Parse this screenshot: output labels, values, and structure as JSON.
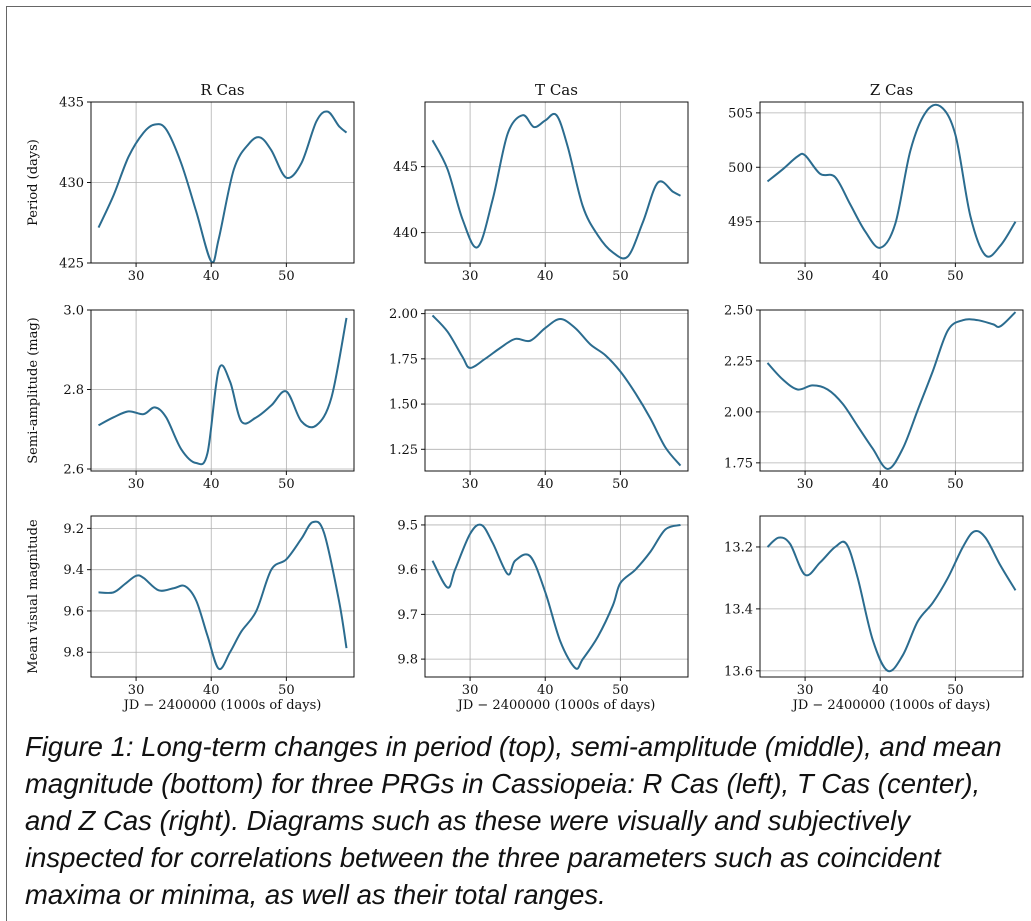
{
  "figure": {
    "caption": "Figure 1: Long-term changes in period (top), semi-amplitude (middle), and mean magnitude (bottom) for three PRGs in Cassiopeia: R Cas (left), T Cas (center), and Z Cas (right).  Diagrams such as these were visually and subjectively inspected for correlations between the three parameters such as coincident maxima or minima, as well as their total ranges."
  },
  "style": {
    "line_color": "#2b6c8f",
    "grid_color": "#b0b0b0"
  },
  "chart_data": [
    {
      "type": "line",
      "title": "R Cas",
      "ylabel": "Period (days)",
      "xlabel": "",
      "grid": true,
      "xlim": [
        24,
        59
      ],
      "ylim": [
        425,
        435
      ],
      "yticks": [
        425,
        430,
        435
      ],
      "xticks": [
        30,
        40,
        50
      ],
      "yinvert": false,
      "x": [
        25,
        27,
        29,
        31,
        32.5,
        34,
        36,
        38,
        40,
        41,
        43,
        45,
        46.5,
        48,
        50,
        52,
        54,
        55.5,
        57,
        58
      ],
      "y": [
        427.2,
        429.2,
        431.6,
        433.1,
        433.6,
        433.3,
        431.2,
        428.2,
        425.1,
        426.5,
        430.8,
        432.4,
        432.8,
        432,
        430.3,
        431.2,
        433.8,
        434.4,
        433.5,
        433.1
      ]
    },
    {
      "type": "line",
      "title": "T Cas",
      "ylabel": "",
      "xlabel": "",
      "grid": true,
      "xlim": [
        24,
        59
      ],
      "ylim": [
        437.7,
        449.9
      ],
      "yticks": [
        440,
        445
      ],
      "xticks": [
        30,
        40,
        50
      ],
      "yinvert": false,
      "x": [
        25,
        27,
        29,
        31,
        33,
        35,
        37,
        38.5,
        40,
        41.5,
        43,
        45,
        47,
        49,
        51,
        53,
        55,
        57,
        58
      ],
      "y": [
        447,
        444.8,
        441,
        438.9,
        442.5,
        447.5,
        448.9,
        448,
        448.5,
        448.9,
        446.5,
        442,
        439.8,
        438.5,
        438.2,
        440.8,
        443.8,
        443.1,
        442.8
      ]
    },
    {
      "type": "line",
      "title": "Z Cas",
      "ylabel": "",
      "xlabel": "",
      "grid": true,
      "xlim": [
        24,
        59
      ],
      "ylim": [
        491.2,
        506
      ],
      "yticks": [
        495,
        500,
        505
      ],
      "xticks": [
        30,
        40,
        50
      ],
      "yinvert": false,
      "x": [
        25,
        27,
        29,
        30,
        32,
        34,
        36,
        38,
        40,
        42,
        44,
        46,
        48,
        50,
        52,
        54,
        56,
        58
      ],
      "y": [
        498.7,
        499.8,
        501,
        501.1,
        499.4,
        499.1,
        496.6,
        494.1,
        492.6,
        494.8,
        501.5,
        505,
        505.6,
        503,
        495.5,
        491.9,
        492.8,
        495
      ]
    },
    {
      "type": "line",
      "title": "",
      "ylabel": "Semi-amplitude (mag)",
      "xlabel": "",
      "grid": true,
      "xlim": [
        24,
        59
      ],
      "ylim": [
        2.595,
        3.0
      ],
      "yticks": [
        2.6,
        2.8,
        3.0
      ],
      "xticks": [
        30,
        40,
        50
      ],
      "yinvert": false,
      "x": [
        25,
        27,
        29,
        31,
        32.5,
        34,
        36,
        38,
        39.5,
        41,
        42.5,
        44,
        46,
        48,
        50,
        52,
        54,
        56,
        58
      ],
      "y": [
        2.71,
        2.73,
        2.745,
        2.738,
        2.755,
        2.73,
        2.65,
        2.615,
        2.64,
        2.85,
        2.82,
        2.72,
        2.73,
        2.76,
        2.795,
        2.72,
        2.71,
        2.78,
        2.98
      ]
    },
    {
      "type": "line",
      "title": "",
      "ylabel": "",
      "xlabel": "",
      "grid": true,
      "xlim": [
        24,
        59
      ],
      "ylim": [
        1.13,
        2.02
      ],
      "yticks": [
        1.25,
        1.5,
        1.75,
        2.0
      ],
      "xticks": [
        30,
        40,
        50
      ],
      "yinvert": false,
      "x": [
        25,
        27,
        29,
        30,
        32,
        34,
        36,
        38,
        40,
        42,
        44,
        46,
        48,
        50,
        52,
        54,
        56,
        58
      ],
      "y": [
        1.99,
        1.9,
        1.76,
        1.7,
        1.75,
        1.81,
        1.86,
        1.85,
        1.92,
        1.97,
        1.92,
        1.83,
        1.77,
        1.68,
        1.56,
        1.42,
        1.26,
        1.16
      ]
    },
    {
      "type": "line",
      "title": "",
      "ylabel": "",
      "xlabel": "",
      "grid": true,
      "xlim": [
        24,
        59
      ],
      "ylim": [
        1.71,
        2.5
      ],
      "yticks": [
        1.75,
        2.0,
        2.25,
        2.5
      ],
      "xticks": [
        30,
        40,
        50
      ],
      "yinvert": false,
      "x": [
        25,
        27,
        29,
        31,
        33,
        35,
        37,
        39,
        41,
        43,
        45,
        47,
        49,
        51,
        53,
        55,
        56,
        58
      ],
      "y": [
        2.24,
        2.16,
        2.11,
        2.13,
        2.11,
        2.04,
        1.93,
        1.82,
        1.72,
        1.82,
        2.01,
        2.2,
        2.4,
        2.45,
        2.45,
        2.43,
        2.42,
        2.49
      ]
    },
    {
      "type": "line",
      "title": "",
      "ylabel": "Mean visual magnitude",
      "xlabel": "JD − 2400000 (1000s of days)",
      "grid": true,
      "xlim": [
        24,
        59
      ],
      "ylim": [
        9.92,
        9.14
      ],
      "yticks": [
        9.2,
        9.4,
        9.6,
        9.8
      ],
      "xticks": [
        30,
        40,
        50
      ],
      "yinvert": true,
      "x": [
        25,
        27,
        28.5,
        30,
        31,
        33,
        35,
        36.5,
        38,
        39.5,
        41,
        42.5,
        44,
        46,
        48,
        50,
        52,
        53.5,
        55,
        57,
        58
      ],
      "y": [
        9.51,
        9.51,
        9.47,
        9.43,
        9.44,
        9.5,
        9.49,
        9.48,
        9.55,
        9.72,
        9.88,
        9.8,
        9.7,
        9.6,
        9.4,
        9.35,
        9.25,
        9.17,
        9.22,
        9.55,
        9.78
      ]
    },
    {
      "type": "line",
      "title": "",
      "ylabel": "",
      "xlabel": "JD − 2400000 (1000s of days)",
      "grid": true,
      "xlim": [
        24,
        59
      ],
      "ylim": [
        9.84,
        9.48
      ],
      "yticks": [
        9.5,
        9.6,
        9.7,
        9.8
      ],
      "xticks": [
        30,
        40,
        50
      ],
      "yinvert": true,
      "x": [
        25,
        27,
        28,
        30,
        31.5,
        33,
        35,
        36,
        38,
        40,
        42,
        44,
        45,
        47,
        49,
        50,
        52,
        54,
        56,
        58
      ],
      "y": [
        9.58,
        9.64,
        9.6,
        9.52,
        9.5,
        9.54,
        9.61,
        9.58,
        9.57,
        9.65,
        9.76,
        9.82,
        9.8,
        9.75,
        9.68,
        9.63,
        9.6,
        9.56,
        9.51,
        9.5
      ]
    },
    {
      "type": "line",
      "title": "",
      "ylabel": "",
      "xlabel": "JD − 2400000 (1000s of days)",
      "grid": true,
      "xlim": [
        24,
        59
      ],
      "ylim": [
        13.62,
        13.1
      ],
      "yticks": [
        13.2,
        13.4,
        13.6
      ],
      "xticks": [
        30,
        40,
        50
      ],
      "yinvert": true,
      "x": [
        25,
        26.5,
        28,
        30,
        32,
        34,
        35.5,
        37,
        39,
        41,
        43,
        45,
        47,
        49,
        51,
        52.5,
        54,
        56,
        58
      ],
      "y": [
        13.2,
        13.17,
        13.19,
        13.29,
        13.25,
        13.2,
        13.19,
        13.3,
        13.5,
        13.6,
        13.55,
        13.44,
        13.38,
        13.3,
        13.2,
        13.15,
        13.17,
        13.26,
        13.34
      ]
    }
  ]
}
